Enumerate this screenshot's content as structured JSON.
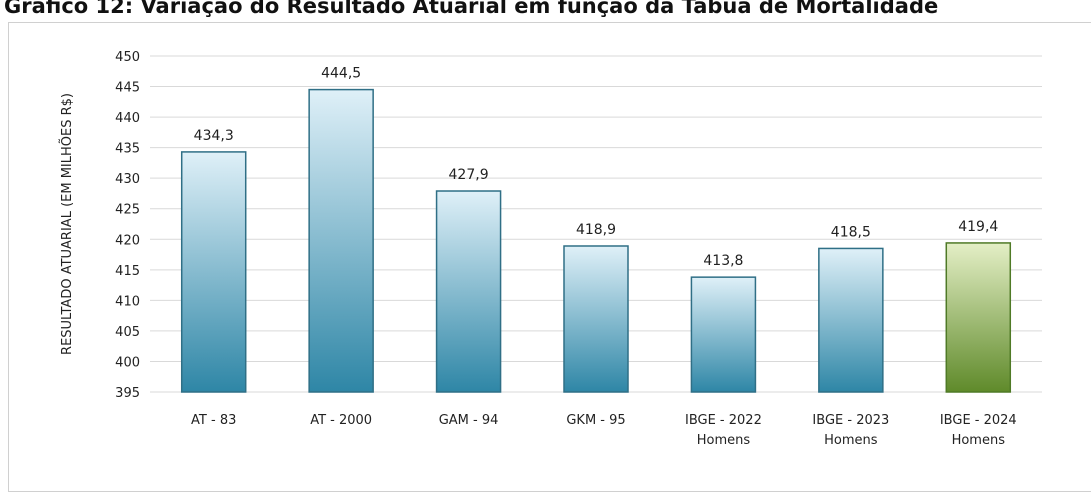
{
  "title": "Gráfico 12: Variação do Resultado Atuarial em função da Tábua de Mortalidade",
  "chart_data": {
    "type": "bar",
    "title": "",
    "categories": [
      [
        "AT - 83"
      ],
      [
        "AT - 2000"
      ],
      [
        "GAM - 94"
      ],
      [
        "GKM - 95"
      ],
      [
        "IBGE - 2022",
        "Homens"
      ],
      [
        "IBGE - 2023",
        "Homens"
      ],
      [
        "IBGE - 2024",
        "Homens"
      ]
    ],
    "values": [
      434.3,
      444.5,
      427.9,
      418.9,
      413.8,
      418.5,
      419.4
    ],
    "data_labels": [
      "434,3",
      "444,5",
      "427,9",
      "418,9",
      "413,8",
      "418,5",
      "419,4"
    ],
    "ylabel": "RESULTADO ATUARIAL (EM MILHÕES R$)",
    "xlabel": "",
    "ylim": [
      395,
      450
    ],
    "yticks": [
      395,
      400,
      405,
      410,
      415,
      420,
      425,
      430,
      435,
      440,
      445,
      450
    ],
    "grid": true,
    "colors": {
      "bar_top": "#dff0f8",
      "bar_bottom": "#2e86a6",
      "bar_stroke": "#2f6f86",
      "highlight_top": "#e4efc6",
      "highlight_bottom": "#5f8a2a",
      "highlight_stroke": "#4f7a26",
      "grid": "#d9d9d9"
    },
    "highlight_index": 6
  }
}
